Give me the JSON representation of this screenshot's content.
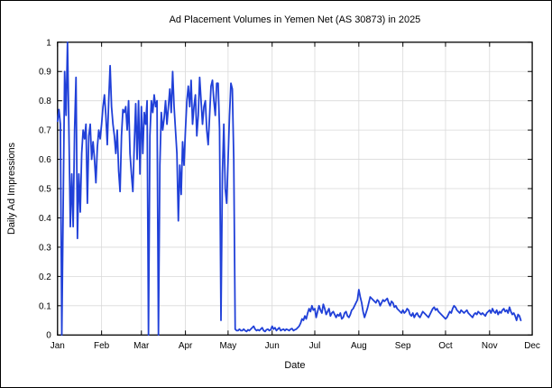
{
  "title": "Ad Placement Volumes in Yemen Net (AS 30873) in 2025",
  "chart_data": {
    "type": "line",
    "title": "Ad Placement Volumes in Yemen Net (AS 30873) in 2025",
    "xlabel": "Date",
    "ylabel": "Daily Ad Impressions",
    "grid": true,
    "legend": "none",
    "line_color": "#2040d8",
    "grid_color": "#d9d9d9",
    "axis_color": "#000000",
    "ylim": [
      0,
      1
    ],
    "y_ticks": [
      0,
      0.1,
      0.2,
      0.3,
      0.4,
      0.5,
      0.6,
      0.7,
      0.8,
      0.9,
      1
    ],
    "y_tick_labels": [
      "0",
      "0.1",
      "0.2",
      "0.3",
      "0.4",
      "0.5",
      "0.6",
      "0.7",
      "0.8",
      "0.9",
      "1"
    ],
    "x_tick_labels": [
      "Jan",
      "Feb",
      "Mar",
      "Apr",
      "May",
      "Jun",
      "Jul",
      "Aug",
      "Sep",
      "Oct",
      "Nov",
      "Dec"
    ],
    "x_tick_day_offsets": [
      0,
      31,
      59,
      90,
      120,
      151,
      181,
      212,
      243,
      273,
      304,
      334
    ],
    "x_axis_total_days": 334,
    "series_name": "Daily Ad Impressions",
    "cadence": "daily, starting Jan 1, ending ~Nov 23",
    "values_by_month": {
      "Jan": [
        0.73,
        0.77,
        0.72,
        0.0,
        0.45,
        0.9,
        0.75,
        1.0,
        0.7,
        0.37,
        0.55,
        0.37,
        0.7,
        0.88,
        0.33,
        0.55,
        0.42,
        0.62,
        0.7,
        0.67,
        0.72,
        0.45,
        0.68,
        0.72,
        0.6,
        0.66,
        0.6,
        0.52,
        0.64,
        0.7,
        0.67
      ],
      "Feb": [
        0.72,
        0.78,
        0.82,
        0.75,
        0.65,
        0.8,
        0.92,
        0.78,
        0.72,
        0.68,
        0.62,
        0.7,
        0.56,
        0.49,
        0.68,
        0.77,
        0.76,
        0.78,
        0.7,
        0.8,
        0.62,
        0.55,
        0.49,
        0.65,
        0.79,
        0.6,
        0.8,
        0.55
      ],
      "Mar": [
        0.78,
        0.62,
        0.76,
        0.72,
        0.8,
        0.0,
        0.68,
        0.8,
        0.76,
        0.82,
        0.78,
        0.8,
        0.0,
        0.58,
        0.76,
        0.7,
        0.74,
        0.8,
        0.72,
        0.78,
        0.84,
        0.76,
        0.9,
        0.78,
        0.7,
        0.62,
        0.39,
        0.58,
        0.48,
        0.66,
        0.58
      ],
      "Apr": [
        0.7,
        0.8,
        0.85,
        0.78,
        0.87,
        0.72,
        0.78,
        0.82,
        0.68,
        0.75,
        0.88,
        0.8,
        0.72,
        0.78,
        0.8,
        0.7,
        0.65,
        0.75,
        0.85,
        0.87,
        0.8,
        0.75,
        0.86,
        0.86,
        0.7,
        0.05,
        0.55,
        0.72,
        0.5,
        0.45
      ],
      "May": [
        0.6,
        0.75,
        0.86,
        0.84,
        0.6,
        0.02,
        0.015,
        0.015,
        0.02,
        0.015,
        0.015,
        0.02,
        0.015,
        0.012,
        0.018,
        0.015,
        0.02,
        0.025,
        0.03,
        0.02,
        0.015,
        0.018,
        0.015,
        0.02,
        0.025,
        0.015,
        0.012,
        0.018,
        0.02,
        0.015,
        0.018
      ],
      "Jun": [
        0.03,
        0.02,
        0.025,
        0.015,
        0.02,
        0.025,
        0.015,
        0.018,
        0.02,
        0.015,
        0.02,
        0.018,
        0.015,
        0.02,
        0.022,
        0.015,
        0.018,
        0.02,
        0.025,
        0.03,
        0.04,
        0.055,
        0.05,
        0.065,
        0.055,
        0.075,
        0.09,
        0.08,
        0.1,
        0.085
      ],
      "Jul": [
        0.09,
        0.06,
        0.08,
        0.1,
        0.085,
        0.075,
        0.105,
        0.09,
        0.07,
        0.08,
        0.09,
        0.065,
        0.075,
        0.08,
        0.07,
        0.06,
        0.07,
        0.065,
        0.075,
        0.055,
        0.06,
        0.075,
        0.08,
        0.065,
        0.06,
        0.07,
        0.085,
        0.09,
        0.1,
        0.11,
        0.12
      ],
      "Aug": [
        0.155,
        0.13,
        0.11,
        0.08,
        0.06,
        0.075,
        0.09,
        0.11,
        0.13,
        0.125,
        0.12,
        0.115,
        0.11,
        0.12,
        0.115,
        0.1,
        0.11,
        0.12,
        0.115,
        0.12,
        0.125,
        0.11,
        0.1,
        0.115,
        0.11,
        0.095,
        0.1,
        0.09,
        0.085,
        0.08,
        0.075
      ],
      "Sep": [
        0.085,
        0.075,
        0.08,
        0.09,
        0.085,
        0.07,
        0.065,
        0.075,
        0.06,
        0.07,
        0.075,
        0.065,
        0.06,
        0.07,
        0.08,
        0.075,
        0.07,
        0.065,
        0.06,
        0.07,
        0.08,
        0.09,
        0.095,
        0.085,
        0.09,
        0.08,
        0.075,
        0.07,
        0.065,
        0.06
      ],
      "Oct": [
        0.055,
        0.06,
        0.07,
        0.08,
        0.075,
        0.09,
        0.1,
        0.095,
        0.085,
        0.08,
        0.075,
        0.085,
        0.08,
        0.075,
        0.08,
        0.085,
        0.075,
        0.07,
        0.065,
        0.06,
        0.07,
        0.075,
        0.07,
        0.08,
        0.075,
        0.07,
        0.075,
        0.07,
        0.065,
        0.075,
        0.08
      ],
      "Nov": [
        0.085,
        0.075,
        0.09,
        0.08,
        0.075,
        0.085,
        0.07,
        0.08,
        0.075,
        0.085,
        0.09,
        0.08,
        0.085,
        0.075,
        0.095,
        0.08,
        0.07,
        0.075,
        0.065,
        0.05,
        0.07,
        0.065,
        0.05
      ],
      "Dec": []
    }
  }
}
